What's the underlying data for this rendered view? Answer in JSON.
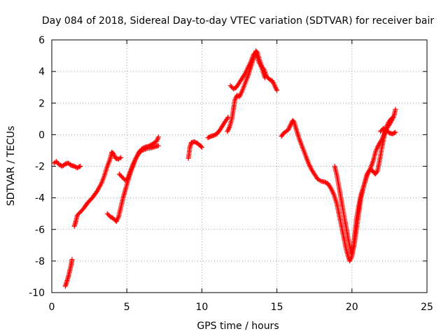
{
  "chart_data": {
    "type": "scatter",
    "title": "Day 084 of 2018, Sidereal Day-to-day VTEC variation (SDTVAR) for receiver bair",
    "xlabel": "GPS time / hours",
    "ylabel": "SDTVAR / TECUs",
    "xlim": [
      0,
      25
    ],
    "ylim": [
      -10,
      6
    ],
    "xticks": [
      0,
      5,
      10,
      15,
      20,
      25
    ],
    "yticks": [
      -10,
      -8,
      -6,
      -4,
      -2,
      0,
      2,
      4,
      6
    ],
    "xtick_labels": [
      "0",
      "5",
      "10",
      "15",
      "20",
      "25"
    ],
    "ytick_labels": [
      "-10",
      "-8",
      "-6",
      "-4",
      "-2",
      "0",
      "2",
      "4",
      "6"
    ],
    "grid": true,
    "legend": "none",
    "marker": "plus",
    "color": "#ff0000",
    "series": [
      {
        "segments": [
          [
            [
              0.15,
              -1.8
            ],
            [
              0.3,
              -1.7
            ],
            [
              0.5,
              -1.9
            ],
            [
              0.7,
              -2.0
            ],
            [
              0.9,
              -1.85
            ],
            [
              1.1,
              -1.8
            ],
            [
              1.3,
              -1.95
            ],
            [
              1.5,
              -2.0
            ],
            [
              1.7,
              -2.1
            ],
            [
              1.9,
              -2.0
            ]
          ],
          [
            [
              0.9,
              -9.6
            ],
            [
              1.0,
              -9.3
            ],
            [
              1.1,
              -9.0
            ],
            [
              1.2,
              -8.6
            ],
            [
              1.3,
              -8.2
            ],
            [
              1.35,
              -7.9
            ]
          ],
          [
            [
              1.5,
              -5.8
            ],
            [
              1.6,
              -5.5
            ],
            [
              1.7,
              -5.1
            ],
            [
              1.9,
              -4.9
            ],
            [
              2.1,
              -4.7
            ],
            [
              2.4,
              -4.3
            ],
            [
              2.7,
              -4.0
            ],
            [
              3.0,
              -3.6
            ],
            [
              3.3,
              -3.1
            ],
            [
              3.5,
              -2.6
            ],
            [
              3.7,
              -2.0
            ],
            [
              3.9,
              -1.5
            ],
            [
              4.0,
              -1.1
            ],
            [
              4.1,
              -1.2
            ],
            [
              4.25,
              -1.5
            ],
            [
              4.45,
              -1.55
            ],
            [
              4.6,
              -1.45
            ]
          ],
          [
            [
              3.7,
              -5.0
            ],
            [
              3.9,
              -5.2
            ],
            [
              4.1,
              -5.3
            ],
            [
              4.3,
              -5.5
            ],
            [
              4.45,
              -5.2
            ],
            [
              4.6,
              -4.6
            ],
            [
              4.75,
              -4.0
            ],
            [
              4.9,
              -3.5
            ],
            [
              5.05,
              -3.0
            ],
            [
              5.2,
              -2.5
            ],
            [
              5.4,
              -2.0
            ],
            [
              5.6,
              -1.5
            ],
            [
              5.8,
              -1.1
            ],
            [
              6.0,
              -0.9
            ],
            [
              6.2,
              -0.8
            ],
            [
              6.4,
              -0.75
            ],
            [
              6.7,
              -0.6
            ],
            [
              7.0,
              -0.4
            ],
            [
              7.1,
              -0.15
            ]
          ],
          [
            [
              4.5,
              -2.5
            ],
            [
              4.7,
              -2.7
            ],
            [
              4.9,
              -2.9
            ],
            [
              5.05,
              -2.8
            ],
            [
              5.2,
              -2.4
            ],
            [
              5.4,
              -1.9
            ],
            [
              5.6,
              -1.5
            ],
            [
              5.8,
              -1.2
            ],
            [
              6.0,
              -1.0
            ],
            [
              6.3,
              -0.9
            ],
            [
              6.6,
              -0.85
            ],
            [
              6.9,
              -0.75
            ],
            [
              7.1,
              -0.7
            ]
          ],
          [
            [
              9.1,
              -1.5
            ],
            [
              9.2,
              -0.8
            ],
            [
              9.3,
              -0.5
            ],
            [
              9.5,
              -0.45
            ],
            [
              9.7,
              -0.55
            ],
            [
              9.9,
              -0.7
            ],
            [
              10.0,
              -0.8
            ]
          ],
          [
            [
              10.4,
              -0.2
            ],
            [
              10.6,
              -0.1
            ],
            [
              10.8,
              -0.05
            ],
            [
              11.0,
              0.05
            ],
            [
              11.2,
              0.3
            ],
            [
              11.4,
              0.6
            ],
            [
              11.6,
              0.9
            ],
            [
              11.75,
              1.1
            ]
          ],
          [
            [
              11.7,
              0.2
            ],
            [
              11.85,
              0.5
            ],
            [
              12.0,
              1.0
            ],
            [
              12.1,
              1.6
            ],
            [
              12.2,
              2.2
            ],
            [
              12.35,
              2.5
            ],
            [
              12.5,
              2.4
            ],
            [
              12.7,
              2.8
            ],
            [
              12.9,
              3.3
            ],
            [
              13.1,
              3.8
            ],
            [
              13.3,
              4.4
            ],
            [
              13.5,
              5.0
            ],
            [
              13.6,
              5.3
            ],
            [
              13.7,
              5.2
            ],
            [
              13.85,
              4.7
            ],
            [
              14.0,
              4.3
            ],
            [
              14.15,
              4.1
            ],
            [
              14.3,
              3.7
            ],
            [
              14.5,
              3.5
            ],
            [
              14.7,
              3.4
            ],
            [
              14.9,
              3.0
            ],
            [
              15.0,
              2.8
            ]
          ],
          [
            [
              11.9,
              3.1
            ],
            [
              12.1,
              2.9
            ],
            [
              12.3,
              3.0
            ],
            [
              12.5,
              3.3
            ],
            [
              12.7,
              3.6
            ],
            [
              12.9,
              3.9
            ],
            [
              13.1,
              4.3
            ],
            [
              13.3,
              4.7
            ],
            [
              13.45,
              5.1
            ],
            [
              13.6,
              5.2
            ],
            [
              13.8,
              4.6
            ],
            [
              14.0,
              4.2
            ],
            [
              14.2,
              3.6
            ]
          ],
          [
            [
              15.3,
              -0.1
            ],
            [
              15.45,
              0.1
            ],
            [
              15.6,
              0.2
            ],
            [
              15.75,
              0.3
            ],
            [
              15.9,
              0.6
            ],
            [
              16.05,
              0.9
            ],
            [
              16.15,
              0.8
            ],
            [
              16.3,
              0.3
            ],
            [
              16.5,
              -0.3
            ],
            [
              16.7,
              -0.8
            ],
            [
              16.9,
              -1.3
            ],
            [
              17.1,
              -1.8
            ],
            [
              17.3,
              -2.2
            ],
            [
              17.5,
              -2.5
            ],
            [
              17.7,
              -2.8
            ],
            [
              17.95,
              -2.95
            ],
            [
              18.2,
              -3.0
            ],
            [
              18.4,
              -3.1
            ],
            [
              18.6,
              -3.4
            ],
            [
              18.8,
              -3.8
            ],
            [
              19.0,
              -4.4
            ],
            [
              19.15,
              -5.1
            ],
            [
              19.3,
              -5.8
            ],
            [
              19.45,
              -6.5
            ],
            [
              19.6,
              -7.2
            ],
            [
              19.75,
              -7.7
            ],
            [
              19.85,
              -8.0
            ],
            [
              20.0,
              -7.7
            ],
            [
              20.1,
              -7.0
            ],
            [
              20.2,
              -6.2
            ],
            [
              20.3,
              -5.3
            ],
            [
              20.45,
              -4.5
            ],
            [
              20.6,
              -3.8
            ],
            [
              20.8,
              -3.2
            ],
            [
              21.0,
              -2.6
            ],
            [
              21.2,
              -2.2
            ],
            [
              21.4,
              -1.7
            ],
            [
              21.6,
              -1.0
            ],
            [
              21.8,
              -0.6
            ],
            [
              22.0,
              -0.3
            ],
            [
              22.2,
              0.2
            ],
            [
              22.4,
              0.5
            ],
            [
              22.6,
              0.8
            ],
            [
              22.8,
              1.2
            ],
            [
              22.9,
              1.6
            ]
          ],
          [
            [
              18.85,
              -2.0
            ],
            [
              19.0,
              -2.6
            ],
            [
              19.15,
              -3.4
            ],
            [
              19.3,
              -4.2
            ],
            [
              19.45,
              -5.0
            ],
            [
              19.6,
              -5.8
            ],
            [
              19.75,
              -6.6
            ],
            [
              19.9,
              -7.3
            ],
            [
              20.0,
              -7.6
            ],
            [
              20.15,
              -7.0
            ],
            [
              20.3,
              -6.0
            ],
            [
              20.45,
              -5.0
            ],
            [
              20.6,
              -4.0
            ],
            [
              20.8,
              -3.2
            ],
            [
              21.0,
              -2.5
            ],
            [
              21.2,
              -2.2
            ],
            [
              21.4,
              -2.3
            ],
            [
              21.55,
              -2.5
            ],
            [
              21.7,
              -2.3
            ],
            [
              21.85,
              -1.6
            ],
            [
              22.0,
              -0.8
            ],
            [
              22.15,
              -0.1
            ],
            [
              22.3,
              0.5
            ],
            [
              22.45,
              0.8
            ],
            [
              22.6,
              1.0
            ],
            [
              22.75,
              1.1
            ]
          ],
          [
            [
              21.9,
              0.2
            ],
            [
              22.1,
              0.4
            ],
            [
              22.3,
              0.3
            ],
            [
              22.5,
              0.1
            ],
            [
              22.7,
              0.05
            ],
            [
              22.9,
              0.15
            ]
          ]
        ]
      }
    ]
  }
}
